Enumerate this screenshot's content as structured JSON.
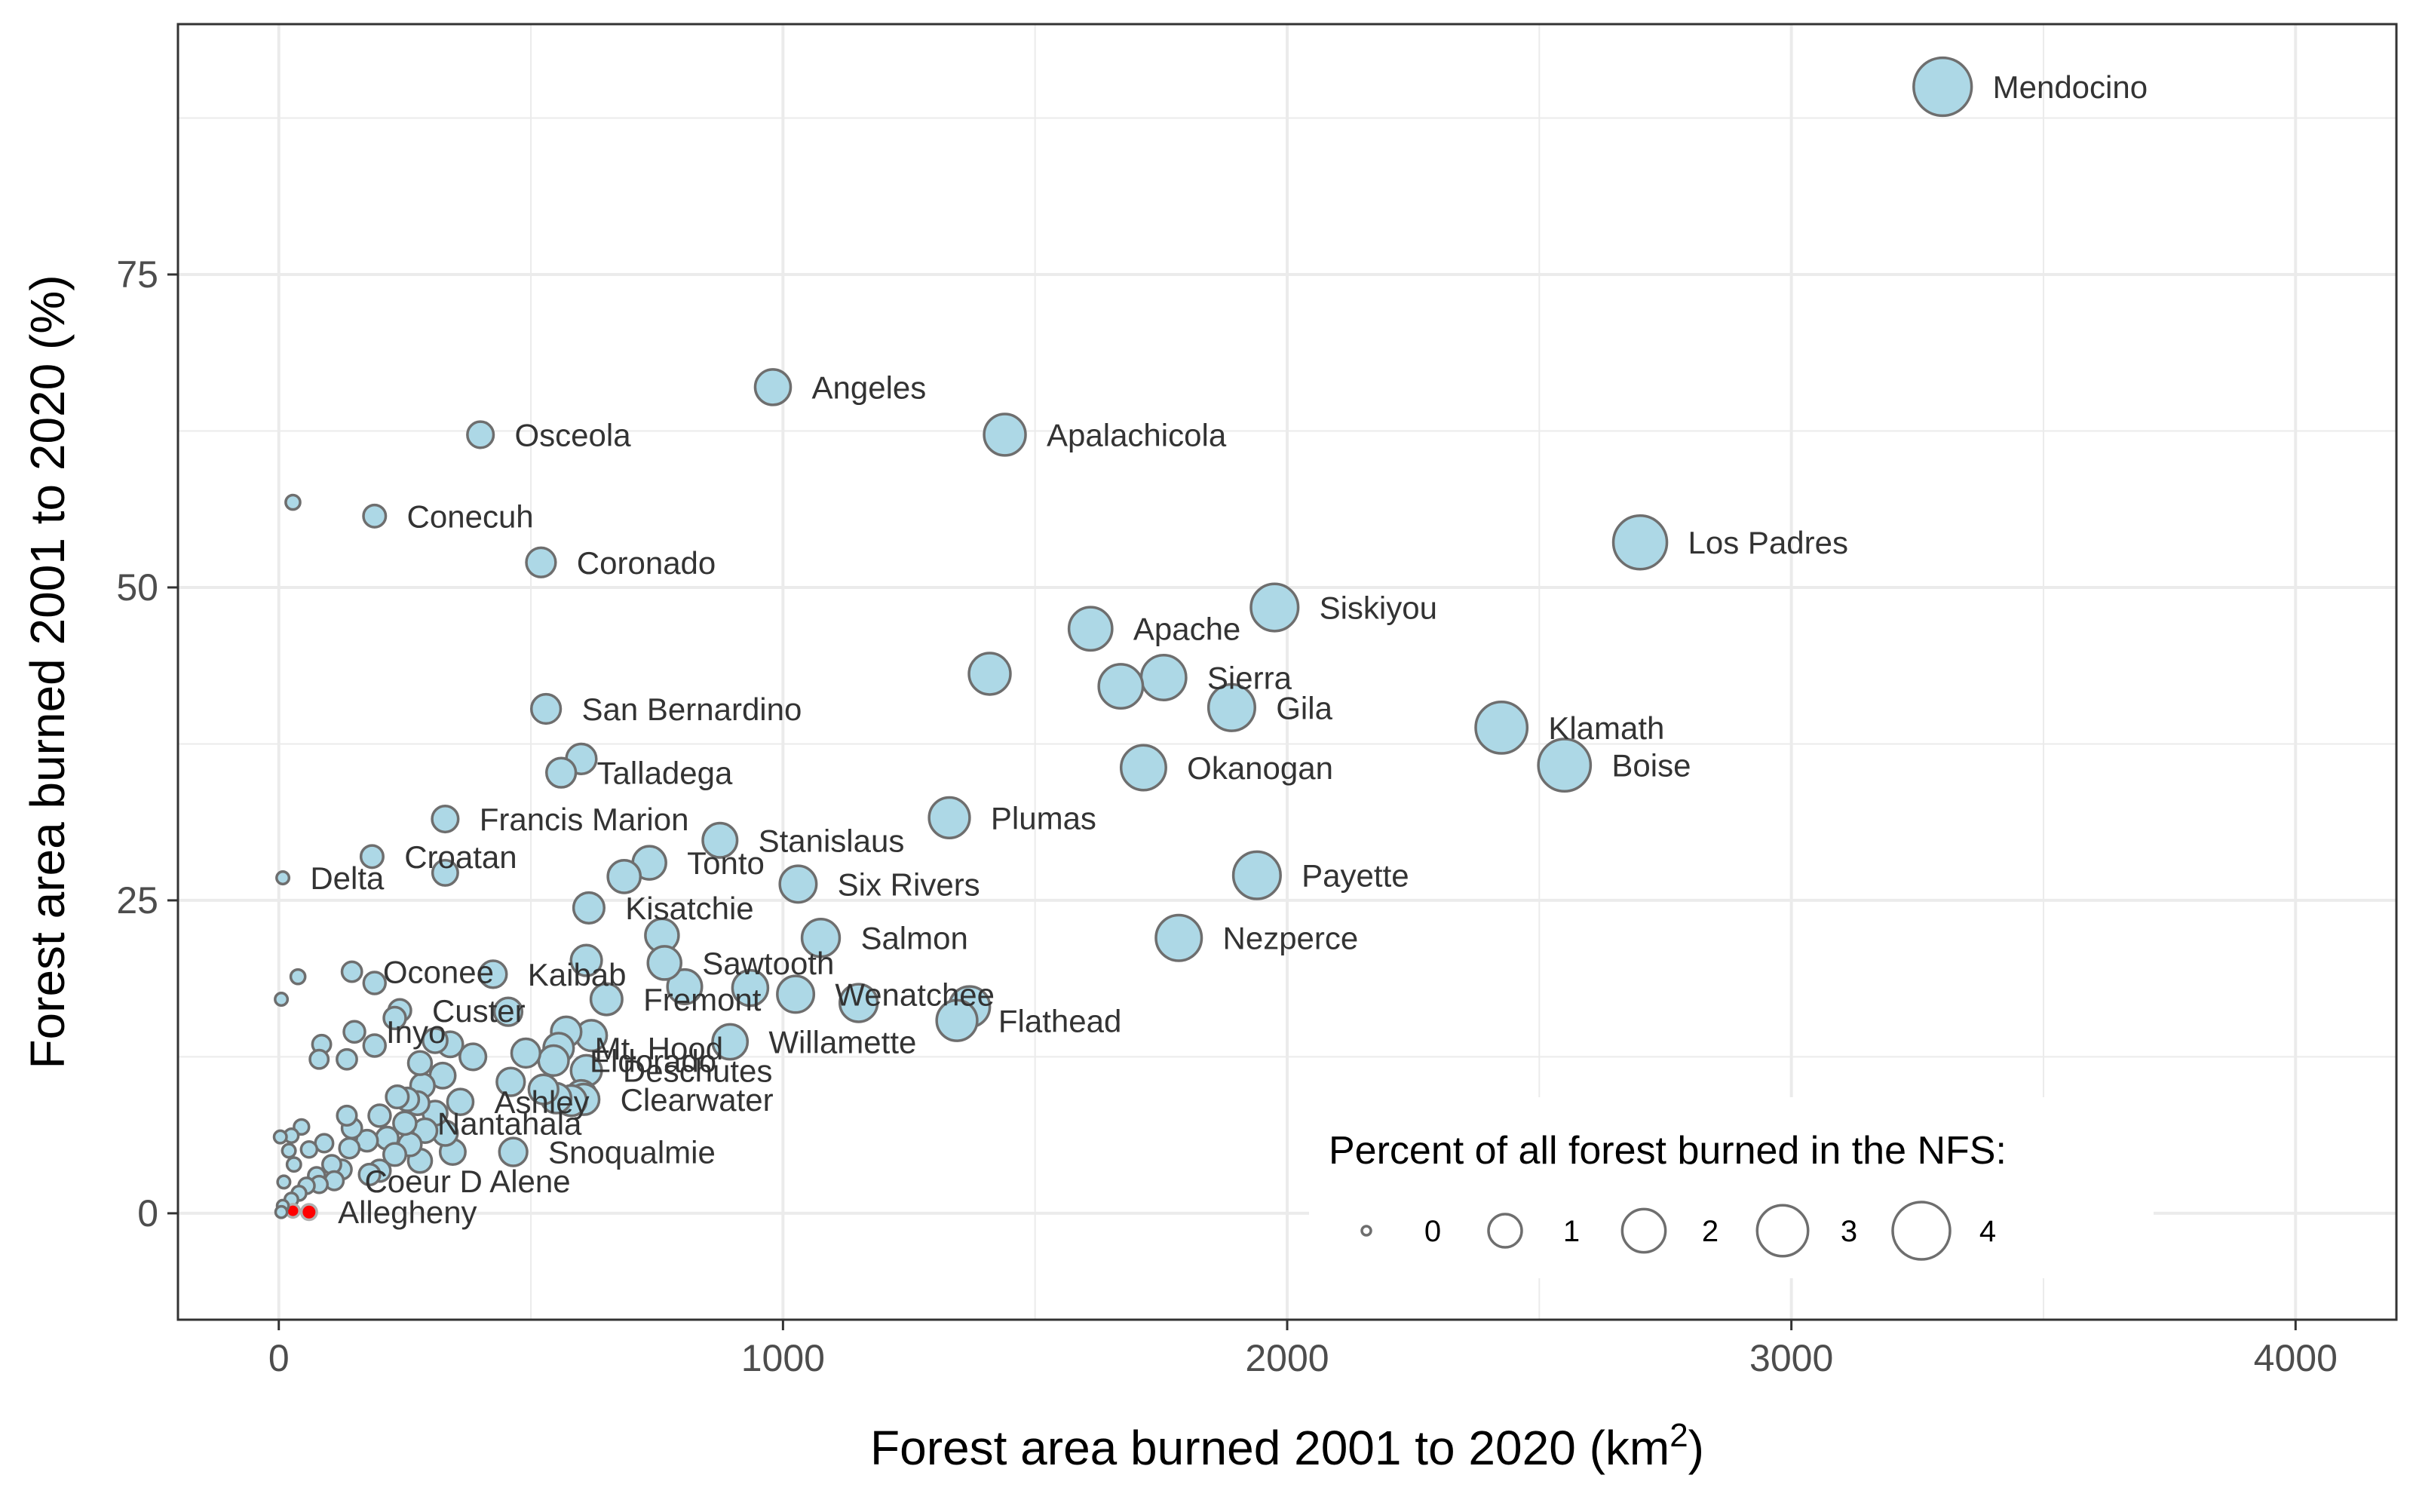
{
  "chart_data": {
    "type": "scatter",
    "title": "",
    "xlabel": "Forest area burned 2001 to 2020 (km",
    "xlabel_superscript": "2",
    "xlabel_suffix": ")",
    "ylabel": "Forest area burned 2001 to 2020 (%)",
    "xlim": [
      -200,
      4200
    ],
    "ylim": [
      -8.5,
      95
    ],
    "x_ticks": [
      0,
      1000,
      2000,
      3000,
      4000
    ],
    "y_ticks": [
      0,
      25,
      50,
      75
    ],
    "grid": true,
    "colors": {
      "point_fill": "#add8e6",
      "point_stroke": "#6e6e6e",
      "highlight_fill": "#ff0000",
      "grid": "#ebebeb",
      "panel_border": "#333333"
    },
    "size_legend": {
      "title": "Percent of all forest burned in the NFS:",
      "placement": "bottom-right",
      "values": [
        0,
        1,
        2,
        3,
        4
      ]
    },
    "points": [
      {
        "label": "Mendocino",
        "x": 3300,
        "y": 90.0,
        "size": 4.1
      },
      {
        "label": "Angeles",
        "x": 980,
        "y": 66.0,
        "size": 1.2
      },
      {
        "label": "Apalachicola",
        "x": 1440,
        "y": 62.2,
        "size": 1.8
      },
      {
        "label": "Osceola",
        "x": 400,
        "y": 62.2,
        "size": 0.5
      },
      {
        "label": "Los Padres",
        "x": 2700,
        "y": 53.6,
        "size": 3.4
      },
      {
        "label": "Conecuh",
        "x": 190,
        "y": 55.7,
        "size": 0.3
      },
      {
        "label": "",
        "x": 28,
        "y": 56.8,
        "size": 0.05
      },
      {
        "label": "Coronado",
        "x": 520,
        "y": 52.0,
        "size": 0.7
      },
      {
        "label": "Siskiyou",
        "x": 1975,
        "y": 48.4,
        "size": 2.5
      },
      {
        "label": "Apache",
        "x": 1610,
        "y": 46.7,
        "size": 2.0
      },
      {
        "label": "",
        "x": 1410,
        "y": 43.1,
        "size": 1.8
      },
      {
        "label": "",
        "x": 1670,
        "y": 42.1,
        "size": 2.1
      },
      {
        "label": "Sierra",
        "x": 1755,
        "y": 42.8,
        "size": 2.2
      },
      {
        "label": "Gila",
        "x": 1890,
        "y": 40.4,
        "size": 2.4
      },
      {
        "label": "San Bernardino",
        "x": 530,
        "y": 40.3,
        "size": 0.7
      },
      {
        "label": "Klamath",
        "x": 2425,
        "y": 38.8,
        "size": 3.1
      },
      {
        "label": "Boise",
        "x": 2550,
        "y": 35.8,
        "size": 3.2
      },
      {
        "label": "Okanogan",
        "x": 1715,
        "y": 35.6,
        "size": 2.2
      },
      {
        "label": "Talladega",
        "x": 560,
        "y": 35.2,
        "size": 0.7
      },
      {
        "label": "",
        "x": 600,
        "y": 36.3,
        "size": 0.75
      },
      {
        "label": "Francis Marion",
        "x": 330,
        "y": 31.5,
        "size": 0.5
      },
      {
        "label": "Plumas",
        "x": 1330,
        "y": 31.6,
        "size": 1.7
      },
      {
        "label": "Stanislaus",
        "x": 875,
        "y": 29.8,
        "size": 1.1
      },
      {
        "label": "Croatan",
        "x": 185,
        "y": 28.5,
        "size": 0.3
      },
      {
        "label": "",
        "x": 330,
        "y": 27.2,
        "size": 0.45
      },
      {
        "label": "Delta",
        "x": 8,
        "y": 26.8,
        "size": 0.02
      },
      {
        "label": "Tonto",
        "x": 735,
        "y": 28.0,
        "size": 1.0
      },
      {
        "label": "",
        "x": 685,
        "y": 26.9,
        "size": 0.95
      },
      {
        "label": "Payette",
        "x": 1940,
        "y": 27.0,
        "size": 2.5
      },
      {
        "label": "Six Rivers",
        "x": 1030,
        "y": 26.3,
        "size": 1.3
      },
      {
        "label": "Kisatchie",
        "x": 615,
        "y": 24.4,
        "size": 0.8
      },
      {
        "label": "",
        "x": 760,
        "y": 22.2,
        "size": 1.0
      },
      {
        "label": "Salmon",
        "x": 1075,
        "y": 22.0,
        "size": 1.4
      },
      {
        "label": "Nezperce",
        "x": 1785,
        "y": 22.0,
        "size": 2.3
      },
      {
        "label": "Sawtooth",
        "x": 765,
        "y": 20.0,
        "size": 1.0
      },
      {
        "label": "",
        "x": 610,
        "y": 20.2,
        "size": 0.8
      },
      {
        "label": "Oconee",
        "x": 145,
        "y": 19.3,
        "size": 0.2
      },
      {
        "label": "",
        "x": 38,
        "y": 18.9,
        "size": 0.05
      },
      {
        "label": "Kaibab",
        "x": 425,
        "y": 19.1,
        "size": 0.55
      },
      {
        "label": "",
        "x": 190,
        "y": 18.4,
        "size": 0.28
      },
      {
        "label": "",
        "x": 805,
        "y": 18.1,
        "size": 1.1
      },
      {
        "label": "",
        "x": 935,
        "y": 18.0,
        "size": 1.2
      },
      {
        "label": "Wenatchee",
        "x": 1025,
        "y": 17.5,
        "size": 1.3
      },
      {
        "label": "",
        "x": 1150,
        "y": 16.8,
        "size": 1.4
      },
      {
        "label": "",
        "x": 1370,
        "y": 16.5,
        "size": 1.7
      },
      {
        "label": "Flathead",
        "x": 1345,
        "y": 15.4,
        "size": 1.7
      },
      {
        "label": "",
        "x": 5,
        "y": 17.1,
        "size": 0.02
      },
      {
        "label": "Fremont",
        "x": 650,
        "y": 17.1,
        "size": 0.85
      },
      {
        "label": "Custer",
        "x": 240,
        "y": 16.2,
        "size": 0.3
      },
      {
        "label": "",
        "x": 455,
        "y": 16.1,
        "size": 0.6
      },
      {
        "label": "",
        "x": 230,
        "y": 15.6,
        "size": 0.28
      },
      {
        "label": "Inyo",
        "x": 150,
        "y": 14.5,
        "size": 0.25
      },
      {
        "label": "",
        "x": 85,
        "y": 13.5,
        "size": 0.15
      },
      {
        "label": "",
        "x": 190,
        "y": 13.4,
        "size": 0.28
      },
      {
        "label": "",
        "x": 570,
        "y": 14.5,
        "size": 0.75
      },
      {
        "label": "",
        "x": 620,
        "y": 14.2,
        "size": 0.8
      },
      {
        "label": "Mt. Hood",
        "x": 555,
        "y": 13.2,
        "size": 0.75
      },
      {
        "label": "Willamette",
        "x": 895,
        "y": 13.7,
        "size": 1.15
      },
      {
        "label": "",
        "x": 310,
        "y": 13.8,
        "size": 0.4
      },
      {
        "label": "",
        "x": 340,
        "y": 13.5,
        "size": 0.45
      },
      {
        "label": "",
        "x": 385,
        "y": 12.5,
        "size": 0.5
      },
      {
        "label": "",
        "x": 490,
        "y": 12.8,
        "size": 0.65
      },
      {
        "label": "",
        "x": 80,
        "y": 12.3,
        "size": 0.15
      },
      {
        "label": "",
        "x": 135,
        "y": 12.3,
        "size": 0.2
      },
      {
        "label": "",
        "x": 280,
        "y": 12.0,
        "size": 0.35
      },
      {
        "label": "Eldorado",
        "x": 545,
        "y": 12.2,
        "size": 0.75
      },
      {
        "label": "Deschutes",
        "x": 610,
        "y": 11.4,
        "size": 0.8
      },
      {
        "label": "",
        "x": 325,
        "y": 11.0,
        "size": 0.45
      },
      {
        "label": "",
        "x": 285,
        "y": 10.2,
        "size": 0.38
      },
      {
        "label": "",
        "x": 460,
        "y": 10.5,
        "size": 0.6
      },
      {
        "label": "",
        "x": 525,
        "y": 9.9,
        "size": 0.7
      },
      {
        "label": "",
        "x": 550,
        "y": 9.2,
        "size": 0.75
      },
      {
        "label": "",
        "x": 580,
        "y": 9.0,
        "size": 0.78
      },
      {
        "label": "",
        "x": 600,
        "y": 9.4,
        "size": 0.8
      },
      {
        "label": "Clearwater",
        "x": 605,
        "y": 9.1,
        "size": 0.8
      },
      {
        "label": "Ashley",
        "x": 360,
        "y": 8.9,
        "size": 0.48
      },
      {
        "label": "",
        "x": 235,
        "y": 9.3,
        "size": 0.3
      },
      {
        "label": "",
        "x": 255,
        "y": 9.1,
        "size": 0.33
      },
      {
        "label": "",
        "x": 275,
        "y": 8.8,
        "size": 0.35
      },
      {
        "label": "",
        "x": 310,
        "y": 8.0,
        "size": 0.4
      },
      {
        "label": "",
        "x": 200,
        "y": 7.8,
        "size": 0.28
      },
      {
        "label": "",
        "x": 135,
        "y": 7.8,
        "size": 0.18
      },
      {
        "label": "Nantahala",
        "x": 250,
        "y": 7.2,
        "size": 0.32
      },
      {
        "label": "",
        "x": 145,
        "y": 6.8,
        "size": 0.2
      },
      {
        "label": "",
        "x": 45,
        "y": 6.9,
        "size": 0.06
      },
      {
        "label": "",
        "x": 25,
        "y": 6.2,
        "size": 0.04
      },
      {
        "label": "",
        "x": 290,
        "y": 6.6,
        "size": 0.38
      },
      {
        "label": "",
        "x": 330,
        "y": 6.4,
        "size": 0.42
      },
      {
        "label": "",
        "x": 215,
        "y": 6.0,
        "size": 0.3
      },
      {
        "label": "",
        "x": 175,
        "y": 5.8,
        "size": 0.25
      },
      {
        "label": "",
        "x": 3,
        "y": 6.1,
        "size": 0.02
      },
      {
        "label": "",
        "x": 90,
        "y": 5.6,
        "size": 0.13
      },
      {
        "label": "",
        "x": 260,
        "y": 5.5,
        "size": 0.33
      },
      {
        "label": "",
        "x": 140,
        "y": 5.2,
        "size": 0.2
      },
      {
        "label": "",
        "x": 60,
        "y": 5.1,
        "size": 0.08
      },
      {
        "label": "",
        "x": 20,
        "y": 5.0,
        "size": 0.03
      },
      {
        "label": "Snoqualmie",
        "x": 465,
        "y": 4.9,
        "size": 0.6
      },
      {
        "label": "",
        "x": 345,
        "y": 4.9,
        "size": 0.45
      },
      {
        "label": "",
        "x": 230,
        "y": 4.7,
        "size": 0.3
      },
      {
        "label": "",
        "x": 280,
        "y": 4.2,
        "size": 0.36
      },
      {
        "label": "",
        "x": 30,
        "y": 3.9,
        "size": 0.04
      },
      {
        "label": "",
        "x": 105,
        "y": 3.9,
        "size": 0.15
      },
      {
        "label": "",
        "x": 125,
        "y": 3.5,
        "size": 0.18
      },
      {
        "label": "",
        "x": 200,
        "y": 3.4,
        "size": 0.27
      },
      {
        "label": "",
        "x": 75,
        "y": 3.0,
        "size": 0.1
      },
      {
        "label": "",
        "x": 180,
        "y": 3.1,
        "size": 0.24
      },
      {
        "label": "Coeur D Alene",
        "x": 110,
        "y": 2.6,
        "size": 0.15
      },
      {
        "label": "",
        "x": 55,
        "y": 2.2,
        "size": 0.08
      },
      {
        "label": "",
        "x": 10,
        "y": 2.5,
        "size": 0.02
      },
      {
        "label": "",
        "x": 40,
        "y": 1.6,
        "size": 0.05
      },
      {
        "label": "",
        "x": 80,
        "y": 2.3,
        "size": 0.1
      },
      {
        "label": "",
        "x": 25,
        "y": 1.1,
        "size": 0.03
      },
      {
        "label": "",
        "x": 8,
        "y": 0.6,
        "size": 0.01
      },
      {
        "label": "",
        "x": 5,
        "y": 0.1,
        "size": 0.01
      },
      {
        "label": "",
        "x": 28,
        "y": 0.2,
        "size": 0.03,
        "highlight": true
      },
      {
        "label": "Allegheny",
        "x": 60,
        "y": 0.1,
        "size": 0.07,
        "highlight": true
      }
    ]
  }
}
